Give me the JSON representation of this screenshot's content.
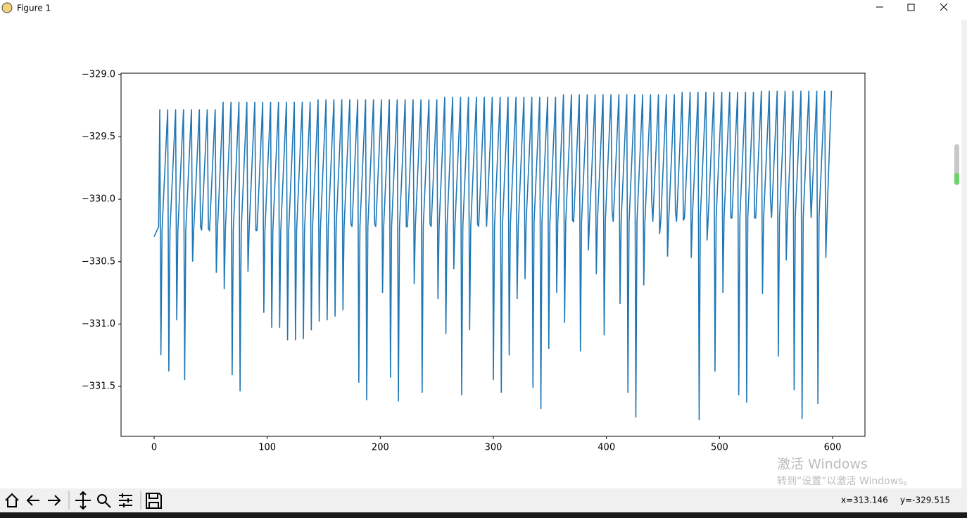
{
  "window_title": "Figure 1",
  "status": {
    "x": "x=313.146",
    "y": "y=-329.515"
  },
  "watermark": {
    "line1": "激活 Windows",
    "line2": "转到“设置”以激活 Windows。"
  },
  "chart_data": {
    "type": "line",
    "xlim": [
      -29.25,
      628.6
    ],
    "ylim": [
      -331.9,
      -328.99
    ],
    "xticks": [
      0,
      100,
      200,
      300,
      400,
      500,
      600
    ],
    "yticks": [
      {
        "value": -329.0,
        "label": "−329.0"
      },
      {
        "value": -329.5,
        "label": "−329.5"
      },
      {
        "value": -330.0,
        "label": "−330.0"
      },
      {
        "value": -330.5,
        "label": "−330.5"
      },
      {
        "value": -331.0,
        "label": "−331.0"
      },
      {
        "value": -331.5,
        "label": "−331.5"
      }
    ],
    "series": [
      {
        "color": "#1f77b4",
        "x": [
          0,
          4,
          5,
          6,
          7,
          12,
          13,
          14,
          19,
          20,
          21,
          26,
          27,
          28,
          33,
          34,
          35,
          40,
          41,
          42,
          47,
          48,
          49,
          54,
          55,
          56,
          61,
          62,
          63,
          68,
          69,
          70,
          75,
          76,
          77,
          82,
          83,
          84,
          89,
          90,
          91,
          96,
          97,
          98,
          103,
          104,
          105,
          110,
          111,
          112,
          117,
          118,
          119,
          124,
          125,
          126,
          131,
          132,
          133,
          138,
          139,
          140,
          145,
          146,
          147,
          152,
          153,
          154,
          159,
          160,
          161,
          166,
          167,
          168,
          173,
          174,
          175,
          180,
          181,
          182,
          187,
          188,
          189,
          194,
          195,
          196,
          201,
          202,
          203,
          208,
          209,
          210,
          215,
          216,
          217,
          222,
          223,
          224,
          229,
          230,
          231,
          236,
          237,
          238,
          243,
          244,
          245,
          250,
          251,
          252,
          257,
          258,
          259,
          264,
          265,
          266,
          271,
          272,
          273,
          278,
          279,
          280,
          285,
          286,
          287,
          292,
          293,
          294,
          299,
          300,
          301,
          306,
          307,
          308,
          313,
          314,
          315,
          320,
          321,
          322,
          327,
          328,
          329,
          334,
          335,
          336,
          341,
          342,
          343,
          348,
          349,
          350,
          355,
          356,
          357,
          362,
          363,
          364,
          369,
          370,
          371,
          376,
          377,
          378,
          383,
          384,
          385,
          390,
          391,
          392,
          397,
          398,
          399,
          404,
          405,
          406,
          411,
          412,
          413,
          418,
          419,
          420,
          425,
          426,
          427,
          432,
          433,
          434,
          439,
          440,
          441,
          446,
          447,
          448,
          453,
          454,
          455,
          460,
          461,
          462,
          467,
          468,
          469,
          474,
          475,
          476,
          481,
          482,
          483,
          488,
          489,
          490,
          495,
          496,
          497,
          502,
          503,
          504,
          509,
          510,
          511,
          516,
          517,
          518,
          523,
          524,
          525,
          530,
          531,
          532,
          537,
          538,
          539,
          544,
          545,
          546,
          551,
          552,
          553,
          558,
          559,
          560,
          565,
          566,
          567,
          572,
          573,
          574,
          579,
          580,
          581,
          586,
          587,
          588,
          593,
          594,
          595,
          599
        ],
        "values": [
          -330.3,
          -330.22,
          -329.28,
          -331.25,
          -330.25,
          -329.28,
          -331.38,
          -330.25,
          -329.28,
          -330.97,
          -330.25,
          -329.28,
          -331.45,
          -330.25,
          -329.28,
          -330.5,
          -330.25,
          -329.28,
          -330.22,
          -330.25,
          -329.28,
          -330.24,
          -330.25,
          -329.28,
          -330.59,
          -330.25,
          -329.22,
          -330.72,
          -330.25,
          -329.22,
          -331.41,
          -330.25,
          -329.22,
          -331.54,
          -330.25,
          -329.22,
          -330.58,
          -330.25,
          -329.22,
          -330.25,
          -330.25,
          -329.22,
          -330.91,
          -330.25,
          -329.22,
          -331.03,
          -330.25,
          -329.22,
          -331.03,
          -330.25,
          -329.22,
          -331.13,
          -330.25,
          -329.22,
          -331.13,
          -330.25,
          -329.22,
          -331.12,
          -330.25,
          -329.22,
          -331.05,
          -330.25,
          -329.2,
          -330.98,
          -330.25,
          -329.2,
          -330.97,
          -330.22,
          -329.2,
          -330.94,
          -330.22,
          -329.2,
          -330.89,
          -330.22,
          -329.2,
          -330.2,
          -330.22,
          -329.2,
          -331.47,
          -330.22,
          -329.2,
          -331.61,
          -330.22,
          -329.2,
          -330.2,
          -330.22,
          -329.2,
          -330.75,
          -330.22,
          -329.2,
          -331.43,
          -330.22,
          -329.2,
          -331.62,
          -330.22,
          -329.2,
          -330.22,
          -330.22,
          -329.2,
          -330.68,
          -330.22,
          -329.2,
          -331.55,
          -330.22,
          -329.2,
          -330.2,
          -330.22,
          -329.2,
          -330.8,
          -330.22,
          -329.18,
          -331.08,
          -330.22,
          -329.18,
          -330.56,
          -330.22,
          -329.18,
          -331.57,
          -330.22,
          -329.18,
          -331.05,
          -330.22,
          -329.18,
          -330.2,
          -330.22,
          -329.18,
          -329.87,
          -330.22,
          -329.18,
          -331.45,
          -330.22,
          -329.18,
          -331.55,
          -330.22,
          -329.18,
          -331.25,
          -330.22,
          -329.18,
          -330.8,
          -330.22,
          -329.18,
          -330.64,
          -330.18,
          -329.18,
          -331.51,
          -330.18,
          -329.18,
          -331.68,
          -330.18,
          -329.18,
          -331.2,
          -330.18,
          -329.18,
          -330.75,
          -330.18,
          -329.16,
          -330.99,
          -330.18,
          -329.16,
          -330.17,
          -330.18,
          -329.16,
          -331.22,
          -330.18,
          -329.16,
          -330.41,
          -330.18,
          -329.16,
          -330.6,
          -330.18,
          -329.16,
          -331.09,
          -330.18,
          -329.16,
          -330.1,
          -330.18,
          -329.16,
          -330.84,
          -330.18,
          -329.16,
          -331.55,
          -330.18,
          -329.16,
          -331.75,
          -330.18,
          -329.16,
          -330.69,
          -330.18,
          -329.16,
          -330.0,
          -330.18,
          -329.16,
          -330.28,
          -330.18,
          -329.16,
          -330.46,
          -330.18,
          -329.16,
          -330.1,
          -330.18,
          -329.14,
          -330.17,
          -330.15,
          -329.14,
          -330.47,
          -330.15,
          -329.14,
          -331.77,
          -330.15,
          -329.14,
          -330.33,
          -330.15,
          -329.14,
          -331.38,
          -330.15,
          -329.14,
          -330.75,
          -330.15,
          -329.14,
          -330.15,
          -330.15,
          -329.14,
          -331.57,
          -330.15,
          -329.14,
          -331.63,
          -330.15,
          -329.14,
          -330.15,
          -330.15,
          -329.13,
          -330.76,
          -330.15,
          -329.13,
          -330.0,
          -330.15,
          -329.13,
          -331.26,
          -330.15,
          -329.13,
          -330.49,
          -330.15,
          -329.13,
          -331.53,
          -330.15,
          -329.13,
          -331.76,
          -330.15,
          -329.13,
          -329.82,
          -330.15,
          -329.13,
          -331.64,
          -330.15,
          -329.13,
          -330.47,
          -330.15,
          -329.13
        ]
      }
    ]
  }
}
